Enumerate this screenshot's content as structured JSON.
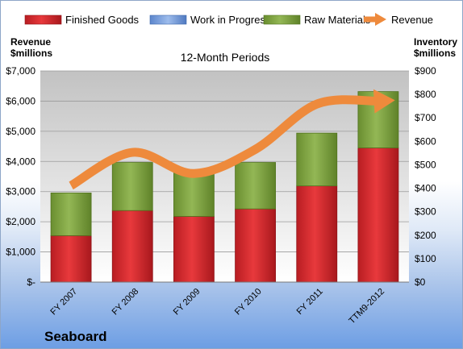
{
  "chart_data": {
    "type": "bar",
    "subtitle": "12-Month Periods",
    "company": "Seaboard",
    "categories": [
      "FY 2007",
      "FY 2008",
      "FY 2009",
      "FY 2010",
      "FY 2011",
      "TTM9-2012"
    ],
    "series": [
      {
        "name": "Finished Goods",
        "axis": "right",
        "stacked": true,
        "color": "#d9262c",
        "values": [
          198,
          305,
          280,
          312,
          410,
          572
        ]
      },
      {
        "name": "Work in Progress",
        "axis": "right",
        "stacked": true,
        "color": "#6f97d8",
        "values": [
          0,
          0,
          0,
          0,
          0,
          0
        ]
      },
      {
        "name": "Raw Materials",
        "axis": "right",
        "stacked": true,
        "color": "#7ba03c",
        "values": [
          182,
          205,
          192,
          198,
          225,
          240
        ]
      },
      {
        "name": "Revenue",
        "axis": "left",
        "type": "line",
        "color": "#ee8a3c",
        "values": [
          3200,
          4300,
          3600,
          4400,
          5900,
          6000
        ]
      }
    ],
    "left_axis": {
      "label_line1": "Revenue",
      "label_line2": "$millions",
      "range": [
        0,
        7000
      ],
      "ticks": [
        "$-",
        "$1,000",
        "$2,000",
        "$3,000",
        "$4,000",
        "$5,000",
        "$6,000",
        "$7,000"
      ]
    },
    "right_axis": {
      "label_line1": "Inventory",
      "label_line2": "$millions",
      "range": [
        0,
        900
      ],
      "ticks": [
        "$0",
        "$100",
        "$200",
        "$300",
        "$400",
        "$500",
        "$600",
        "$700",
        "$800",
        "$900"
      ]
    },
    "legend_position": "top",
    "grid": true
  }
}
